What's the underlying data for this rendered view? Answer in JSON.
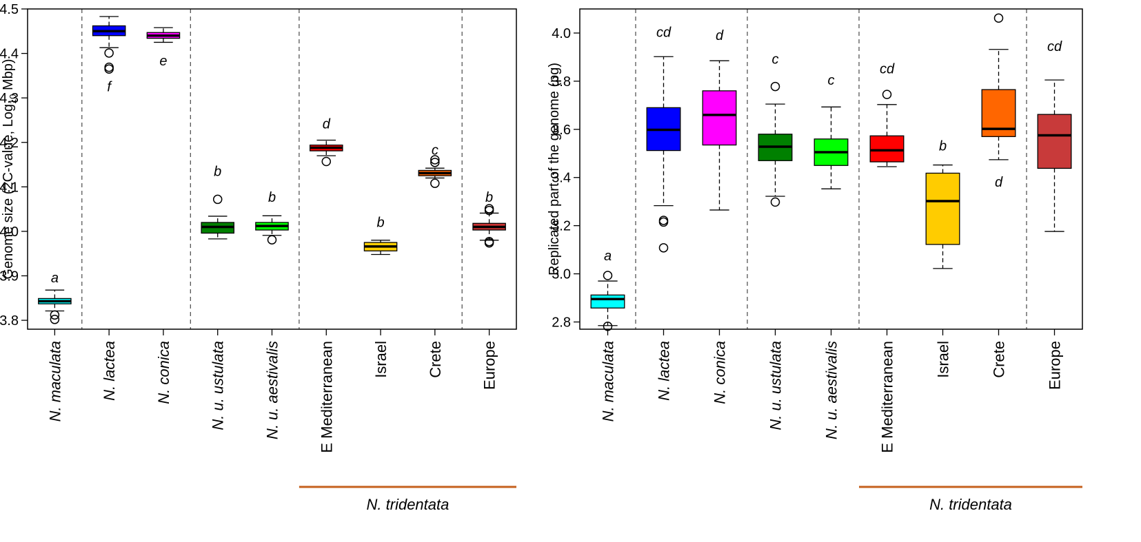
{
  "figure": {
    "group_label": "N. tridentata",
    "group_line_color": "#C5601D"
  },
  "chart_data": [
    {
      "type": "box",
      "ylabel_parts": [
        "Genome size (2C-value, Log",
        "10",
        " Mbp)"
      ],
      "ylim": [
        3.78,
        4.5
      ],
      "yticks": [
        3.8,
        3.9,
        4.0,
        4.1,
        4.2,
        4.3,
        4.4,
        4.5
      ],
      "tick_labels": [
        "3.8",
        "3.9",
        "4.0",
        "4.1",
        "4.2",
        "4.3",
        "4.4",
        "4.5"
      ],
      "group_separators_after": [
        1,
        3,
        5,
        8
      ],
      "tridentata_span": [
        6,
        9
      ],
      "categories": [
        {
          "label": "N. maculata",
          "italic": true,
          "color": "#00FFFF",
          "q1": 3.837,
          "median": 3.843,
          "q3": 3.849,
          "whisker_low": 3.821,
          "whisker_high": 3.868,
          "outliers": [
            3.812,
            3.802
          ],
          "letter": "a",
          "letter_y": 3.896
        },
        {
          "label": "N. lactea",
          "italic": true,
          "color": "#0000FF",
          "q1": 4.44,
          "median": 4.45,
          "q3": 4.462,
          "whisker_low": 4.413,
          "whisker_high": 4.483,
          "outliers": [
            4.401,
            4.369,
            4.365
          ],
          "letter": "f",
          "letter_y": 4.326
        },
        {
          "label": "N. conica",
          "italic": true,
          "color": "#FF00FF",
          "q1": 4.434,
          "median": 4.44,
          "q3": 4.447,
          "whisker_low": 4.425,
          "whisker_high": 4.458,
          "outliers": [],
          "letter": "e",
          "letter_y": 4.384
        },
        {
          "label": "N. u. ustulata",
          "italic": true,
          "color": "#008000",
          "q1": 3.996,
          "median": 4.01,
          "q3": 4.02,
          "whisker_low": 3.983,
          "whisker_high": 4.034,
          "outliers": [
            4.072
          ],
          "letter": "b",
          "letter_y": 4.135
        },
        {
          "label": "N. u. aestivalis",
          "italic": true,
          "color": "#00FF00",
          "q1": 4.003,
          "median": 4.012,
          "q3": 4.02,
          "whisker_low": 3.991,
          "whisker_high": 4.035,
          "outliers": [
            3.981
          ],
          "letter": "b",
          "letter_y": 4.077
        },
        {
          "label": "E Mediterranean",
          "italic": false,
          "color": "#FF0000",
          "q1": 4.181,
          "median": 4.188,
          "q3": 4.194,
          "whisker_low": 4.17,
          "whisker_high": 4.205,
          "outliers": [
            4.157
          ],
          "letter": "d",
          "letter_y": 4.242
        },
        {
          "label": "Israel",
          "italic": false,
          "color": "#FFD000",
          "q1": 3.956,
          "median": 3.966,
          "q3": 3.975,
          "whisker_low": 3.948,
          "whisker_high": 3.98,
          "outliers": [],
          "letter": "b",
          "letter_y": 4.021
        },
        {
          "label": "Crete",
          "italic": false,
          "color": "#FF6600",
          "q1": 4.125,
          "median": 4.131,
          "q3": 4.137,
          "whisker_low": 4.12,
          "whisker_high": 4.142,
          "outliers": [
            4.108,
            4.155,
            4.161
          ],
          "letter": "c",
          "letter_y": 4.183
        },
        {
          "label": "Europe",
          "italic": false,
          "color": "#CC3333",
          "q1": 4.003,
          "median": 4.01,
          "q3": 4.018,
          "whisker_low": 3.98,
          "whisker_high": 4.041,
          "outliers": [
            4.047,
            4.051,
            3.977,
            3.974
          ],
          "letter": "b",
          "letter_y": 4.077
        }
      ]
    },
    {
      "type": "box",
      "ylabel_parts": [
        "Replicated part of the genome (pg)"
      ],
      "ylim": [
        2.77,
        4.1
      ],
      "yticks": [
        2.8,
        3.0,
        3.2,
        3.4,
        3.6,
        3.8,
        4.0
      ],
      "tick_labels": [
        "2.8",
        "3.0",
        "3.2",
        "3.4",
        "3.6",
        "3.8",
        "4.0"
      ],
      "group_separators_after": [
        1,
        3,
        5,
        8
      ],
      "tridentata_span": [
        6,
        9
      ],
      "categories": [
        {
          "label": "N. maculata",
          "italic": true,
          "color": "#00FFFF",
          "q1": 2.858,
          "median": 2.895,
          "q3": 2.912,
          "whisker_low": 2.785,
          "whisker_high": 2.97,
          "outliers": [
            2.993,
            2.782
          ],
          "letter": "a",
          "letter_y": 3.076
        },
        {
          "label": "N. lactea",
          "italic": true,
          "color": "#0000FF",
          "q1": 3.512,
          "median": 3.598,
          "q3": 3.69,
          "whisker_low": 3.283,
          "whisker_high": 3.902,
          "outliers": [
            3.222,
            3.215,
            3.108
          ],
          "letter": "cd",
          "letter_y": 4.004
        },
        {
          "label": "N. conica",
          "italic": true,
          "color": "#FF00FF",
          "q1": 3.535,
          "median": 3.66,
          "q3": 3.76,
          "whisker_low": 3.265,
          "whisker_high": 3.885,
          "outliers": [],
          "letter": "d",
          "letter_y": 3.992
        },
        {
          "label": "N. u. ustulata",
          "italic": true,
          "color": "#008000",
          "q1": 3.47,
          "median": 3.528,
          "q3": 3.58,
          "whisker_low": 3.322,
          "whisker_high": 3.705,
          "outliers": [
            3.778,
            3.298
          ],
          "letter": "c",
          "letter_y": 3.892
        },
        {
          "label": "N. u. aestivalis",
          "italic": true,
          "color": "#00FF00",
          "q1": 3.45,
          "median": 3.505,
          "q3": 3.56,
          "whisker_low": 3.353,
          "whisker_high": 3.693,
          "outliers": [],
          "letter": "c",
          "letter_y": 3.806
        },
        {
          "label": "E Mediterranean",
          "italic": false,
          "color": "#FF0000",
          "q1": 3.465,
          "median": 3.513,
          "q3": 3.573,
          "whisker_low": 3.445,
          "whisker_high": 3.703,
          "outliers": [
            3.745
          ],
          "letter": "cd",
          "letter_y": 3.853
        },
        {
          "label": "Israel",
          "italic": false,
          "color": "#FFCC00",
          "q1": 3.122,
          "median": 3.302,
          "q3": 3.418,
          "whisker_low": 3.022,
          "whisker_high": 3.452,
          "outliers": [],
          "letter": "b",
          "letter_y": 3.532
        },
        {
          "label": "Crete",
          "italic": false,
          "color": "#FF6600",
          "q1": 3.57,
          "median": 3.602,
          "q3": 3.765,
          "whisker_low": 3.474,
          "whisker_high": 3.932,
          "outliers": [
            4.062
          ],
          "letter": "d",
          "letter_y": 3.382
        },
        {
          "label": "Europe",
          "italic": false,
          "color": "#C83A3A",
          "q1": 3.438,
          "median": 3.575,
          "q3": 3.662,
          "whisker_low": 3.176,
          "whisker_high": 3.805,
          "outliers": [],
          "letter": "cd",
          "letter_y": 3.946
        }
      ]
    }
  ]
}
